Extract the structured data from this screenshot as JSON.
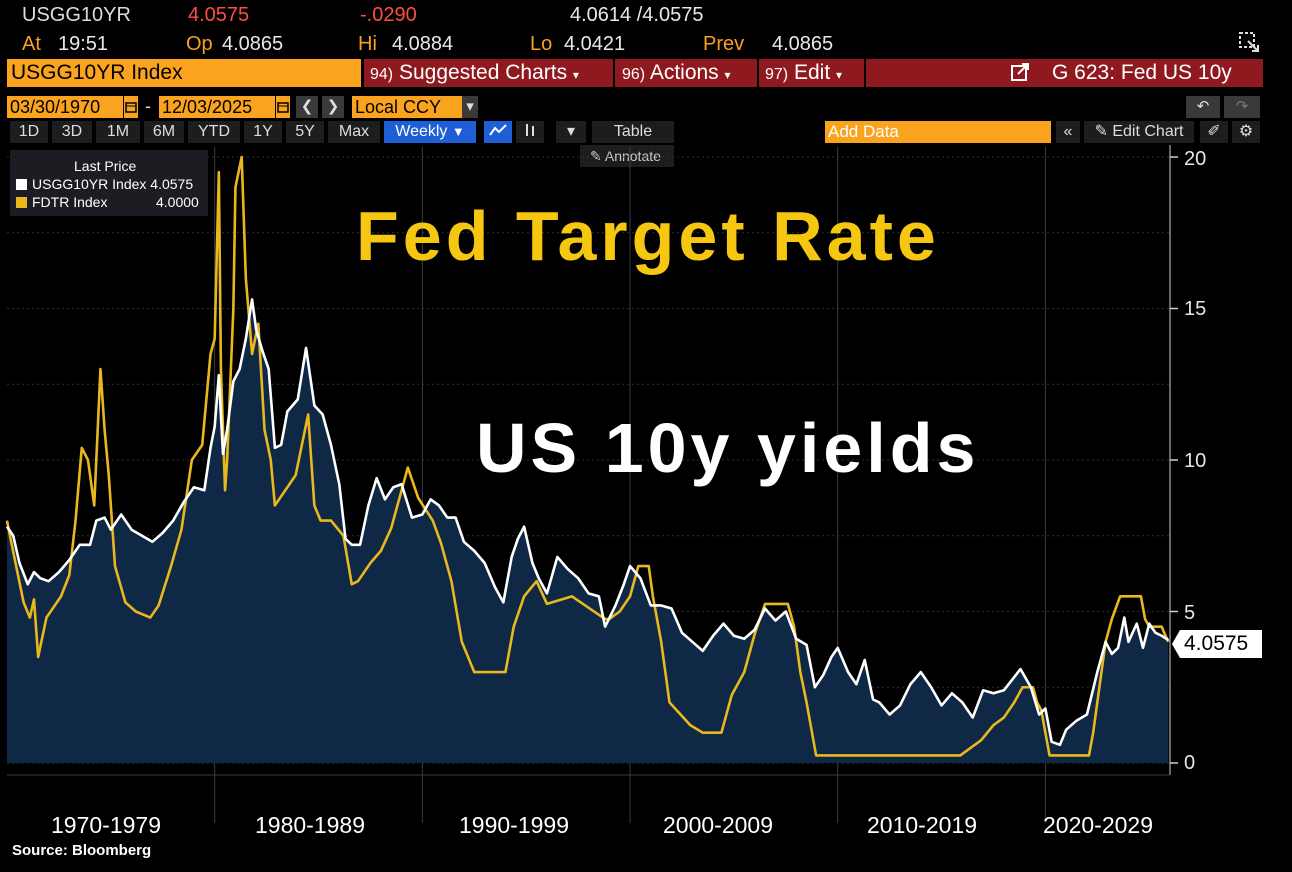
{
  "quote": {
    "ticker": "USGG10YR",
    "last": "4.0575",
    "change": "-.0290",
    "bid_ask": "4.0614 /4.0575",
    "at_label": "At",
    "at_value": "19:51",
    "op_label": "Op",
    "op_value": "4.0865",
    "hi_label": "Hi",
    "hi_value": "4.0884",
    "lo_label": "Lo",
    "lo_value": "4.0421",
    "prev_label": "Prev",
    "prev_value": "4.0865"
  },
  "titlebar": {
    "security": "USGG10YR Index",
    "suggested_num": "94)",
    "suggested_label": "Suggested Charts",
    "actions_num": "96)",
    "actions_label": "Actions",
    "edit_num": "97)",
    "edit_label": "Edit",
    "chart_name": "G 623: Fed US 10y"
  },
  "controls": {
    "start_date": "03/30/1970",
    "end_date": "12/03/2025",
    "dash": "-",
    "currency": "Local CCY",
    "periods": [
      "1D",
      "3D",
      "1M",
      "6M",
      "YTD",
      "1Y",
      "5Y",
      "Max"
    ],
    "frequency": "Weekly",
    "table_label": "Table",
    "annotate_label": "Annotate",
    "add_data_placeholder": "Add Data",
    "edit_chart_label": "Edit Chart"
  },
  "legend": {
    "header": "Last Price",
    "series1_name": "USGG10YR Index",
    "series1_value": "4.0575",
    "series2_name": "FDTR Index",
    "series2_value": "4.0000",
    "series1_color": "#ffffff",
    "series2_color": "#e9b81c"
  },
  "overlay": {
    "headline1": "Fed Target Rate",
    "headline2": "US 10y yields"
  },
  "source": "Source: Bloomberg",
  "last_value_tag": "4.0575",
  "chart_data": {
    "type": "line",
    "title": "Fed Target Rate / US 10y yields",
    "xlabel": "",
    "ylabel": "",
    "ylim": [
      0,
      20
    ],
    "xlim": [
      1970.0,
      2026.0
    ],
    "yticks": [
      "0",
      "5",
      "10",
      "15",
      "20"
    ],
    "ytick_values": [
      0,
      5,
      10,
      15,
      20
    ],
    "decades": [
      "1970-1979",
      "1980-1989",
      "1990-1999",
      "2000-2009",
      "2010-2019",
      "2020-2029"
    ],
    "series": [
      {
        "name": "USGG10YR Index",
        "color": "#ffffff",
        "x": [
          1970.0,
          1970.3,
          1970.6,
          1971.0,
          1971.3,
          1971.6,
          1972.0,
          1972.5,
          1973.0,
          1973.5,
          1974.0,
          1974.3,
          1974.7,
          1975.0,
          1975.5,
          1976.0,
          1976.5,
          1977.0,
          1977.5,
          1978.0,
          1978.5,
          1979.0,
          1979.5,
          1979.8,
          1980.0,
          1980.2,
          1980.4,
          1980.6,
          1980.9,
          1981.2,
          1981.5,
          1981.8,
          1982.0,
          1982.3,
          1982.6,
          1982.9,
          1983.2,
          1983.5,
          1984.0,
          1984.4,
          1984.8,
          1985.2,
          1985.6,
          1986.0,
          1986.3,
          1986.6,
          1987.0,
          1987.4,
          1987.8,
          1988.2,
          1988.6,
          1989.0,
          1989.5,
          1990.0,
          1990.4,
          1990.8,
          1991.2,
          1991.6,
          1992.0,
          1992.5,
          1993.0,
          1993.5,
          1993.9,
          1994.3,
          1994.6,
          1994.9,
          1995.3,
          1995.6,
          1996.0,
          1996.5,
          1997.0,
          1997.5,
          1998.0,
          1998.5,
          1998.8,
          1999.3,
          1999.7,
          2000.0,
          2000.5,
          2001.0,
          2001.5,
          2002.0,
          2002.5,
          2003.0,
          2003.5,
          2004.0,
          2004.5,
          2005.0,
          2005.5,
          2006.0,
          2006.5,
          2007.0,
          2007.5,
          2008.0,
          2008.5,
          2008.9,
          2009.3,
          2009.7,
          2010.0,
          2010.5,
          2010.9,
          2011.3,
          2011.7,
          2012.0,
          2012.5,
          2013.0,
          2013.5,
          2014.0,
          2014.5,
          2015.0,
          2015.5,
          2016.0,
          2016.5,
          2017.0,
          2017.5,
          2018.0,
          2018.8,
          2019.3,
          2019.7,
          2020.0,
          2020.3,
          2020.7,
          2021.0,
          2021.5,
          2022.0,
          2022.5,
          2022.9,
          2023.2,
          2023.5,
          2023.8,
          2024.0,
          2024.4,
          2024.7,
          2025.0,
          2025.3,
          2025.6,
          2025.92
        ],
        "values": [
          7.8,
          7.5,
          6.6,
          5.9,
          6.3,
          6.1,
          6.0,
          6.3,
          6.7,
          7.2,
          7.2,
          8.0,
          8.1,
          7.7,
          8.2,
          7.7,
          7.5,
          7.3,
          7.6,
          8.0,
          8.6,
          9.1,
          9.0,
          10.4,
          11.1,
          12.8,
          10.2,
          11.0,
          12.6,
          13.0,
          14.0,
          15.3,
          14.3,
          13.6,
          13.0,
          10.4,
          10.5,
          11.6,
          12.0,
          13.7,
          11.8,
          11.5,
          10.5,
          9.2,
          7.4,
          7.2,
          7.2,
          8.5,
          9.4,
          8.7,
          9.1,
          9.2,
          8.1,
          8.2,
          8.7,
          8.5,
          8.1,
          8.1,
          7.3,
          7.0,
          6.6,
          5.8,
          5.3,
          6.8,
          7.4,
          7.8,
          6.6,
          6.1,
          5.6,
          6.8,
          6.4,
          6.1,
          5.6,
          5.5,
          4.5,
          5.2,
          5.9,
          6.5,
          6.1,
          5.2,
          5.2,
          5.1,
          4.3,
          4.0,
          3.7,
          4.2,
          4.6,
          4.2,
          4.1,
          4.4,
          5.1,
          4.7,
          5.0,
          4.1,
          3.9,
          2.5,
          2.9,
          3.5,
          3.8,
          3.0,
          2.6,
          3.4,
          2.1,
          2.0,
          1.6,
          1.9,
          2.6,
          3.0,
          2.5,
          1.9,
          2.3,
          2.0,
          1.5,
          2.4,
          2.3,
          2.4,
          3.1,
          2.5,
          1.6,
          1.8,
          0.7,
          0.6,
          1.1,
          1.4,
          1.6,
          3.0,
          4.0,
          3.6,
          3.8,
          4.8,
          4.0,
          4.6,
          3.8,
          4.6,
          4.3,
          4.2,
          4.0575
        ]
      },
      {
        "name": "FDTR Index",
        "color": "#e9b81c",
        "x": [
          1970.0,
          1970.2,
          1970.5,
          1970.8,
          1971.1,
          1971.3,
          1971.5,
          1971.9,
          1972.6,
          1973.0,
          1973.3,
          1973.6,
          1973.9,
          1974.2,
          1974.5,
          1974.7,
          1974.9,
          1975.2,
          1975.7,
          1976.2,
          1976.9,
          1977.3,
          1977.9,
          1978.4,
          1978.9,
          1979.4,
          1979.8,
          1980.0,
          1980.2,
          1980.3,
          1980.5,
          1980.6,
          1980.9,
          1981.0,
          1981.3,
          1981.5,
          1981.8,
          1982.1,
          1982.4,
          1982.7,
          1982.9,
          1983.4,
          1983.9,
          1984.2,
          1984.5,
          1984.8,
          1985.1,
          1985.6,
          1986.2,
          1986.6,
          1986.9,
          1987.5,
          1988.0,
          1988.5,
          1989.0,
          1989.3,
          1989.8,
          1990.5,
          1990.9,
          1991.4,
          1991.9,
          1992.5,
          1993.0,
          1994.0,
          1994.4,
          1994.9,
          1995.5,
          1996.0,
          1997.2,
          1998.8,
          1999.0,
          1999.5,
          2000.0,
          2000.4,
          2000.9,
          2001.1,
          2001.5,
          2001.9,
          2002.9,
          2003.5,
          2004.4,
          2004.9,
          2005.5,
          2006.0,
          2006.5,
          2007.6,
          2007.9,
          2008.2,
          2008.5,
          2008.96,
          2015.9,
          2016.9,
          2017.5,
          2018.0,
          2018.5,
          2018.9,
          2019.4,
          2019.6,
          2019.8,
          2020.2,
          2022.1,
          2022.3,
          2022.6,
          2022.9,
          2023.2,
          2023.6,
          2024.6,
          2024.8,
          2025.0,
          2025.6,
          2025.75,
          2025.92
        ],
        "values": [
          8.0,
          7.3,
          6.3,
          5.3,
          4.8,
          5.4,
          3.5,
          4.8,
          5.5,
          6.2,
          8.0,
          10.4,
          10.0,
          8.5,
          13.0,
          11.0,
          9.5,
          6.5,
          5.3,
          5.0,
          4.8,
          5.2,
          6.5,
          7.7,
          10.0,
          10.5,
          13.5,
          14.0,
          19.5,
          13.0,
          9.0,
          10.0,
          15.0,
          19.0,
          20.0,
          16.0,
          13.5,
          14.5,
          11.0,
          10.0,
          8.5,
          9.0,
          9.5,
          10.5,
          11.5,
          8.5,
          8.0,
          8.0,
          7.5,
          5.9,
          6.0,
          6.6,
          7.0,
          7.75,
          9.0,
          9.75,
          8.75,
          8.0,
          7.25,
          6.0,
          4.0,
          3.0,
          3.0,
          3.0,
          4.5,
          5.5,
          6.0,
          5.25,
          5.5,
          4.75,
          4.75,
          5.0,
          5.5,
          6.5,
          6.5,
          5.5,
          4.0,
          2.0,
          1.25,
          1.0,
          1.0,
          2.25,
          3.0,
          4.25,
          5.25,
          5.25,
          4.5,
          3.0,
          2.0,
          0.25,
          0.25,
          0.75,
          1.25,
          1.5,
          2.0,
          2.5,
          2.5,
          2.0,
          1.75,
          0.25,
          0.25,
          1.0,
          2.5,
          4.0,
          4.75,
          5.5,
          5.5,
          4.75,
          4.5,
          4.5,
          4.25,
          4.0
        ]
      }
    ]
  }
}
